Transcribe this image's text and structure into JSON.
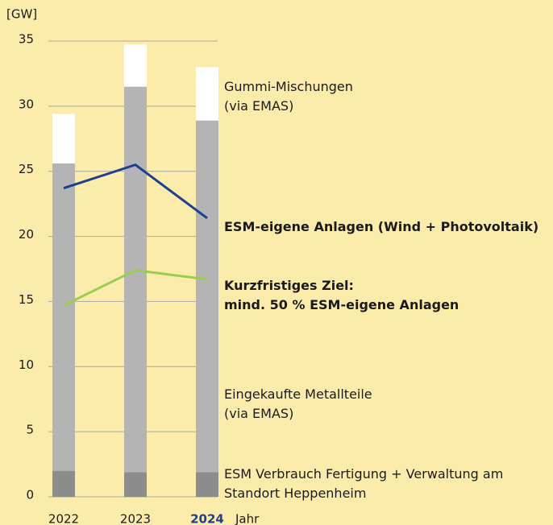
{
  "chart_data": {
    "type": "bar",
    "y_label": "[GW]",
    "x_label": "Jahr",
    "categories": [
      "2022",
      "2023",
      "2024"
    ],
    "ylim": [
      0,
      35
    ],
    "yticks": [
      0,
      5,
      10,
      15,
      20,
      25,
      30,
      35
    ],
    "grid": true,
    "series": [
      {
        "name": "ESM Verbrauch Fertigung + Verwaltung am\nStandort Heppenheim",
        "color": "#8c8c8c",
        "values": [
          2,
          1.9,
          1.9
        ]
      },
      {
        "name": "Eingekaufte Metallteile\n(via EMAS)",
        "color": "#b4b4b4",
        "values": [
          23.6,
          29.6,
          27
        ]
      },
      {
        "name": "Gummi-Mischungen\n(via EMAS)",
        "color": "#ffffff",
        "values": [
          3.8,
          3.25,
          4.1
        ]
      },
      {
        "name": "ESM-eigene Anlagen (Wind + Photovoltaik)",
        "type": "line",
        "color": "#1f3f8f",
        "values": [
          23.7,
          25.5,
          21.4
        ]
      },
      {
        "name": "Kurzfristiges Ziel:\nmind. 50 % ESM-eigene Anlagen",
        "type": "line",
        "color": "#9ccd4e",
        "values": [
          14.7,
          17.4,
          16.7
        ]
      }
    ]
  }
}
